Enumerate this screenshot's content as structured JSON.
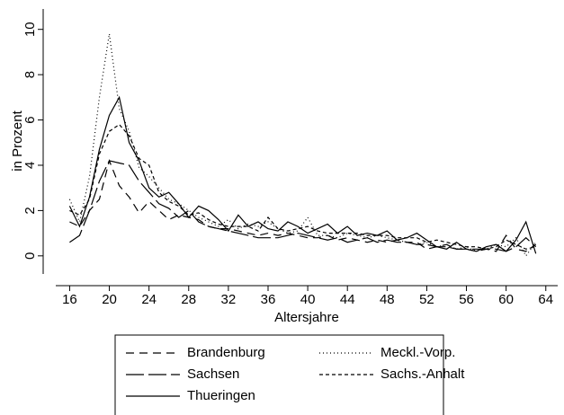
{
  "chart_data": {
    "type": "line",
    "x_label": "Altersjahre",
    "y_label": "in Prozent",
    "x": [
      16,
      17,
      18,
      19,
      20,
      21,
      22,
      23,
      24,
      25,
      26,
      27,
      28,
      29,
      30,
      31,
      32,
      33,
      34,
      35,
      36,
      37,
      38,
      39,
      40,
      41,
      42,
      43,
      44,
      45,
      46,
      47,
      48,
      49,
      50,
      51,
      52,
      53,
      54,
      55,
      56,
      57,
      58,
      59,
      60,
      61,
      62,
      63
    ],
    "xlim": [
      14.6,
      65.2
    ],
    "xticks": [
      16,
      20,
      24,
      28,
      32,
      36,
      40,
      44,
      48,
      52,
      56,
      60,
      64
    ],
    "ylim": [
      -0.8,
      10.9
    ],
    "yticks": [
      0,
      2,
      4,
      6,
      8,
      10
    ],
    "series": [
      {
        "name": "Brandenburg",
        "color": "#000000",
        "dash": "dashed",
        "values": [
          1.5,
          1.3,
          2.0,
          2.5,
          4.2,
          3.1,
          2.6,
          1.9,
          2.4,
          2.0,
          1.6,
          1.8,
          1.7,
          1.6,
          1.3,
          1.2,
          1.2,
          1.1,
          1.0,
          0.9,
          1.0,
          0.9,
          1.0,
          0.9,
          0.8,
          0.8,
          0.9,
          0.7,
          0.8,
          0.7,
          0.6,
          0.7,
          0.6,
          0.7,
          0.6,
          0.6,
          0.3,
          0.4,
          0.5,
          0.3,
          0.3,
          0.2,
          0.3,
          0.2,
          0.9,
          0.3,
          0.2,
          0.5
        ]
      },
      {
        "name": "Meckl.-Vorp.",
        "color": "#000000",
        "dash": "dotted",
        "values": [
          2.5,
          1.5,
          3.5,
          7.0,
          9.8,
          6.5,
          5.5,
          3.9,
          3.5,
          3.0,
          2.5,
          2.3,
          2.0,
          1.7,
          1.5,
          1.3,
          1.6,
          1.2,
          1.4,
          1.3,
          1.5,
          1.2,
          1.0,
          1.1,
          1.7,
          0.9,
          0.9,
          0.8,
          1.0,
          0.9,
          0.8,
          0.9,
          0.8,
          0.7,
          0.6,
          0.5,
          0.6,
          0.4,
          0.5,
          0.3,
          0.4,
          0.2,
          0.3,
          0.5,
          0.4,
          0.8,
          0.0,
          0.6
        ]
      },
      {
        "name": "Sachsen",
        "color": "#000000",
        "dash": "long-dash",
        "values": [
          0.6,
          0.9,
          2.0,
          3.3,
          4.2,
          4.1,
          4.0,
          3.3,
          2.8,
          2.3,
          2.1,
          1.7,
          2.0,
          1.5,
          1.3,
          1.2,
          1.1,
          1.0,
          0.9,
          0.8,
          0.8,
          0.8,
          0.9,
          1.0,
          0.9,
          0.8,
          0.7,
          0.8,
          0.6,
          0.7,
          0.8,
          0.6,
          0.7,
          0.6,
          0.6,
          0.5,
          0.5,
          0.4,
          0.4,
          0.3,
          0.3,
          0.3,
          0.3,
          0.3,
          0.2,
          0.4,
          0.8,
          0.4
        ]
      },
      {
        "name": "Sachs.-Anhalt",
        "color": "#000000",
        "dash": "short-dash",
        "values": [
          2.0,
          1.8,
          2.5,
          4.5,
          5.5,
          5.8,
          5.3,
          4.3,
          4.0,
          2.8,
          2.4,
          2.2,
          1.8,
          1.9,
          1.6,
          1.4,
          1.3,
          1.3,
          1.3,
          1.1,
          1.7,
          1.2,
          1.1,
          1.2,
          1.3,
          1.1,
          1.0,
          1.0,
          1.0,
          1.0,
          0.9,
          0.9,
          0.9,
          0.8,
          0.8,
          0.8,
          0.6,
          0.7,
          0.6,
          0.5,
          0.4,
          0.4,
          0.3,
          0.4,
          0.7,
          0.5,
          0.3,
          0.4
        ]
      },
      {
        "name": "Thueringen",
        "color": "#000000",
        "dash": "solid",
        "values": [
          2.2,
          1.3,
          2.6,
          4.7,
          6.2,
          7.0,
          5.0,
          4.2,
          3.0,
          2.6,
          2.8,
          2.3,
          1.7,
          2.2,
          2.0,
          1.6,
          1.1,
          1.8,
          1.3,
          1.5,
          1.2,
          1.1,
          1.5,
          1.3,
          1.0,
          1.2,
          1.4,
          1.0,
          1.3,
          0.9,
          1.0,
          0.9,
          1.1,
          0.7,
          0.8,
          1.0,
          0.7,
          0.4,
          0.3,
          0.6,
          0.3,
          0.2,
          0.4,
          0.5,
          0.2,
          0.7,
          1.5,
          0.1
        ]
      }
    ]
  }
}
